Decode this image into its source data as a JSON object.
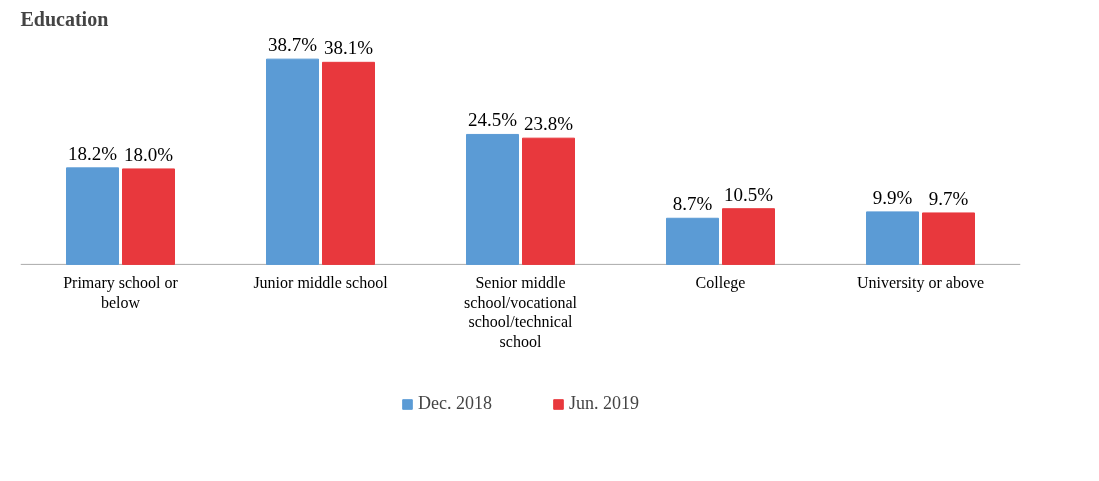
{
  "chart_data": {
    "type": "bar",
    "title": "Education",
    "categories": [
      "Primary school or below",
      "Junior middle school",
      "Senior middle school/vocational school/technical school",
      "College",
      "University or above"
    ],
    "series": [
      {
        "name": "Dec. 2018",
        "color": "#5b9bd5",
        "values": [
          18.2,
          38.7,
          24.5,
          8.7,
          9.9
        ],
        "value_labels": [
          "18.2%",
          "38.7%",
          "24.5%",
          "8.7%",
          "9.9%"
        ]
      },
      {
        "name": "Jun. 2019",
        "color": "#e8383d",
        "values": [
          18.0,
          38.1,
          23.8,
          10.5,
          9.7
        ],
        "value_labels": [
          "18.0%",
          "38.1%",
          "23.8%",
          "10.5%",
          "9.7%"
        ]
      }
    ],
    "legend": "bottom"
  }
}
